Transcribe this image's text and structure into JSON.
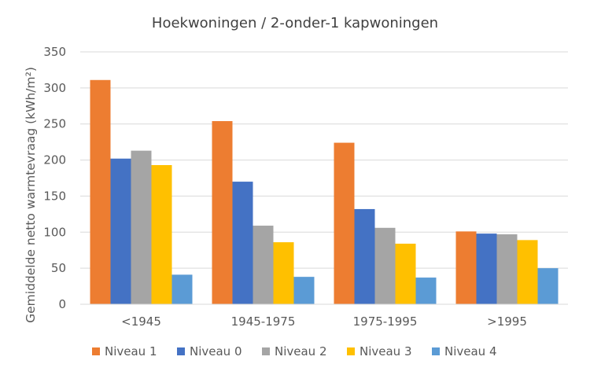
{
  "chart_data": {
    "type": "bar",
    "title": "Hoekwoningen / 2-onder-1 kapwoningen",
    "xlabel": "",
    "ylabel": "Gemiddelde netto warmtevraag (kWh/m²)",
    "ylim": [
      0,
      350
    ],
    "yticks": [
      0,
      50,
      100,
      150,
      200,
      250,
      300,
      350
    ],
    "grid": true,
    "legend_position": "bottom",
    "categories": [
      "<1945",
      "1945-1975",
      "1975-1995",
      ">1995"
    ],
    "series": [
      {
        "name": "Niveau 1",
        "color": "#ED7D31",
        "values": [
          311,
          254,
          224,
          101
        ]
      },
      {
        "name": "Niveau 0",
        "color": "#4472C4",
        "values": [
          202,
          170,
          132,
          98
        ]
      },
      {
        "name": "Niveau 2",
        "color": "#A5A5A5",
        "values": [
          213,
          109,
          106,
          97
        ]
      },
      {
        "name": "Niveau 3",
        "color": "#FFC000",
        "values": [
          193,
          86,
          84,
          89
        ]
      },
      {
        "name": "Niveau 4",
        "color": "#5B9BD5",
        "values": [
          41,
          38,
          37,
          50
        ]
      }
    ]
  }
}
